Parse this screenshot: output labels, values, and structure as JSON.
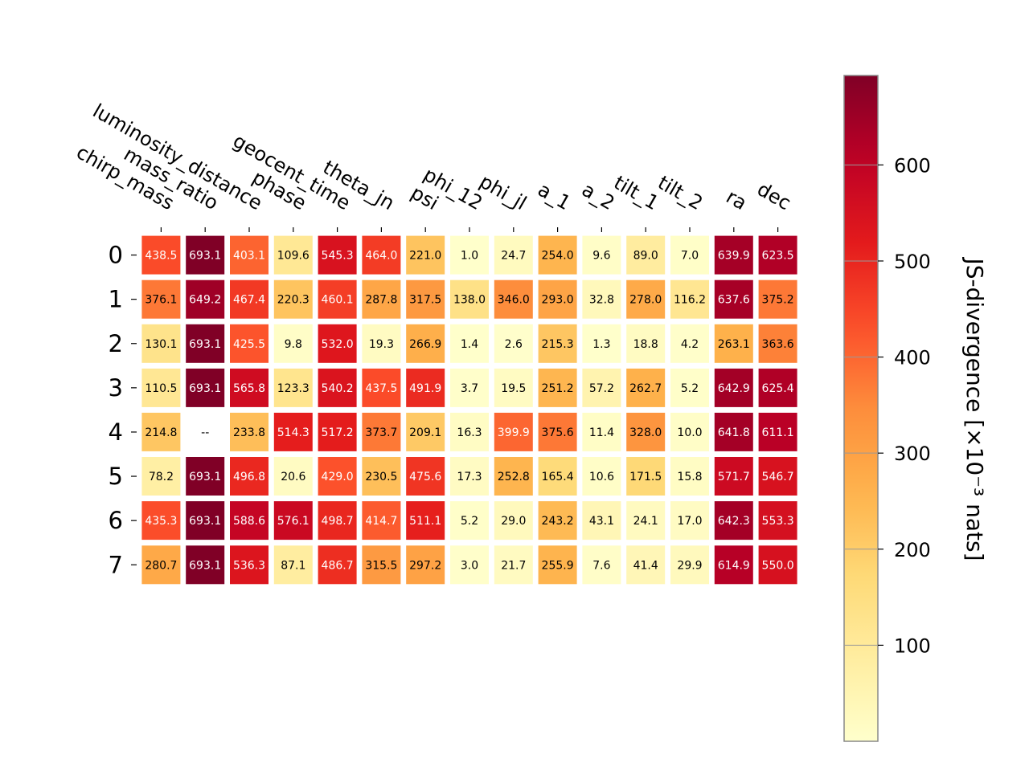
{
  "chart_data": {
    "type": "heatmap",
    "title": "",
    "x_tick_labels": [
      "chirp_mass",
      "mass_ratio",
      "luminosity_distance",
      "phase",
      "geocent_time",
      "theta_jn",
      "psi",
      "phi_12",
      "phi_jl",
      "a_1",
      "a_2",
      "tilt_1",
      "tilt_2",
      "ra",
      "dec"
    ],
    "y_tick_labels": [
      "0",
      "1",
      "2",
      "3",
      "4",
      "5",
      "6",
      "7"
    ],
    "values": [
      [
        438.5,
        693.1,
        403.1,
        109.6,
        545.3,
        464.0,
        221.0,
        1.0,
        24.7,
        254.0,
        9.6,
        89.0,
        7.0,
        639.9,
        623.5
      ],
      [
        376.1,
        649.2,
        467.4,
        220.3,
        460.1,
        287.8,
        317.5,
        138.0,
        346.0,
        293.0,
        32.8,
        278.0,
        116.2,
        637.6,
        375.2
      ],
      [
        130.1,
        693.1,
        425.5,
        9.8,
        532.0,
        19.3,
        266.9,
        1.4,
        2.6,
        215.3,
        1.3,
        18.8,
        4.2,
        263.1,
        363.6
      ],
      [
        110.5,
        693.1,
        565.8,
        123.3,
        540.2,
        437.5,
        491.9,
        3.7,
        19.5,
        251.2,
        57.2,
        262.7,
        5.2,
        642.9,
        625.4
      ],
      [
        214.8,
        null,
        233.8,
        514.3,
        517.2,
        373.7,
        209.1,
        16.3,
        399.9,
        375.6,
        11.4,
        328.0,
        10.0,
        641.8,
        611.1
      ],
      [
        78.2,
        693.1,
        496.8,
        20.6,
        429.0,
        230.5,
        475.6,
        17.3,
        252.8,
        165.4,
        10.6,
        171.5,
        15.8,
        571.7,
        546.7
      ],
      [
        435.3,
        693.1,
        588.6,
        576.1,
        498.7,
        414.7,
        511.1,
        5.2,
        29.0,
        243.2,
        43.1,
        24.1,
        17.0,
        642.3,
        553.3
      ],
      [
        280.7,
        693.1,
        536.3,
        87.1,
        486.7,
        315.5,
        297.2,
        3.0,
        21.7,
        255.9,
        7.6,
        41.4,
        29.9,
        614.9,
        550.0
      ]
    ],
    "missing_label": "--",
    "colormap": "YlOrRd",
    "colorbar": {
      "label": "JS-divergence [×10⁻³ nats]",
      "ticks": [
        100,
        200,
        300,
        400,
        500,
        600
      ],
      "range": [
        0.0,
        693.1
      ]
    }
  }
}
